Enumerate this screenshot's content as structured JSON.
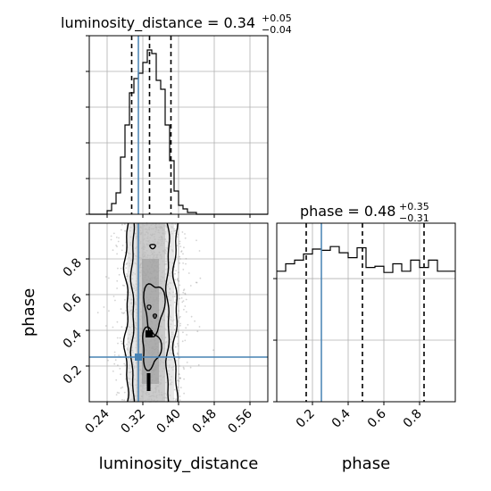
{
  "chart_data": {
    "type": "corner",
    "parameters": [
      "luminosity_distance",
      "phase"
    ],
    "truth": {
      "luminosity_distance": 0.31,
      "phase": 0.25
    },
    "panels": [
      {
        "id": "hist-luminosity_distance",
        "type": "histogram-step",
        "title_main": "luminosity_distance = 0.34",
        "title_sup": "+0.05",
        "title_sub": "−0.04",
        "xlim": [
          0.2,
          0.6
        ],
        "bin_edges": [
          0.2,
          0.21,
          0.22,
          0.23,
          0.24,
          0.25,
          0.26,
          0.27,
          0.28,
          0.29,
          0.3,
          0.31,
          0.32,
          0.33,
          0.34,
          0.35,
          0.36,
          0.37,
          0.38,
          0.39,
          0.4,
          0.41,
          0.42,
          0.43,
          0.44,
          0.45,
          0.46,
          0.47,
          0.48,
          0.49,
          0.5,
          0.51,
          0.52,
          0.53,
          0.54,
          0.55,
          0.56,
          0.57,
          0.58,
          0.59,
          0.6
        ],
        "counts": [
          0,
          0,
          0,
          0,
          2,
          6,
          12,
          32,
          50,
          68,
          76,
          79,
          85,
          92,
          90,
          75,
          70,
          50,
          30,
          13,
          5,
          3,
          1,
          1,
          0,
          0,
          0,
          0,
          0,
          0,
          0,
          0,
          0,
          0,
          0,
          0,
          0,
          0,
          0,
          0
        ],
        "ylim": [
          0,
          100
        ],
        "quantiles": [
          0.295,
          0.335,
          0.383
        ],
        "grid": true
      },
      {
        "id": "hist-phase",
        "type": "histogram-step",
        "title_main": "phase = 0.48",
        "title_sup": "+0.35",
        "title_sub": "−0.31",
        "xlim": [
          0,
          1
        ],
        "bin_edges": [
          0,
          0.05,
          0.1,
          0.15,
          0.2,
          0.25,
          0.3,
          0.35,
          0.4,
          0.45,
          0.5,
          0.55,
          0.6,
          0.65,
          0.7,
          0.75,
          0.8,
          0.85,
          0.9,
          0.95,
          1.0
        ],
        "counts": [
          106,
          112,
          115,
          120,
          124,
          123,
          126,
          121,
          117,
          125,
          109,
          110,
          105,
          112,
          106,
          115,
          109,
          115,
          106,
          106
        ],
        "ylim": [
          0,
          145
        ],
        "quantiles": [
          0.165,
          0.48,
          0.825
        ],
        "grid": true
      },
      {
        "id": "2d-luminosity_distance-phase",
        "type": "scatter-density-contour",
        "xlim": [
          0.2,
          0.6
        ],
        "ylim": [
          0,
          1
        ],
        "xlabel": "luminosity_distance",
        "ylabel": "phase",
        "xticks": [
          "0.24",
          "0.32",
          "0.40",
          "0.48",
          "0.56"
        ],
        "yticks": [
          "0.2",
          "0.4",
          "0.6",
          "0.8"
        ],
        "grid": true
      }
    ],
    "phase_xlabel": "phase",
    "phase_xticks": [
      "0.2",
      "0.4",
      "0.6",
      "0.8"
    ],
    "colors": {
      "line": "#000000",
      "truth": "#4682b4",
      "grid": "#b0b0b0",
      "scatter": "#9e9e9e"
    }
  }
}
